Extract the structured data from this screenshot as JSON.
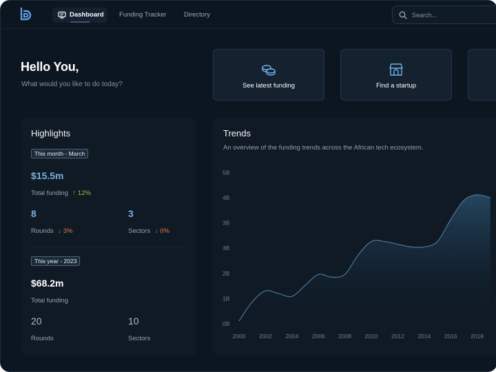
{
  "nav": {
    "tabs": [
      {
        "label": "Dashboard",
        "active": true
      },
      {
        "label": "Funding Tracker",
        "active": false
      },
      {
        "label": "Directory",
        "active": false
      }
    ],
    "search_placeholder": "Search..."
  },
  "greeting": {
    "title": "Hello You,",
    "subtitle": "What would you like to do today?"
  },
  "actions": [
    {
      "label": "See latest funding",
      "icon": "coins-icon"
    },
    {
      "label": "Find a startup",
      "icon": "storefront-icon"
    }
  ],
  "highlights": {
    "title": "Highlights",
    "month": {
      "badge": "This month - March",
      "total_value": "$15.5m",
      "total_label": "Total funding",
      "total_change": "12%",
      "rounds_value": "8",
      "rounds_label": "Rounds",
      "rounds_change": "3%",
      "sectors_value": "3",
      "sectors_label": "Sectors",
      "sectors_change": "0%"
    },
    "year": {
      "badge": "This year - 2023",
      "total_value": "$68.2m",
      "total_label": "Total funding",
      "rounds_value": "20",
      "rounds_label": "Rounds",
      "sectors_value": "10",
      "sectors_label": "Sectors"
    }
  },
  "trends": {
    "title": "Trends",
    "subtitle": "An overview of the funding trends across the African tech ecosystem."
  },
  "colors": {
    "accent_blue": "#79aee0",
    "up_green": "#8cc63f",
    "down_orange": "#e67a3a",
    "background": "#0c1621"
  },
  "chart_data": {
    "type": "area",
    "y_tick_labels": [
      "0B",
      "1B",
      "2B",
      "3B",
      "3B",
      "4B",
      "5B"
    ],
    "x_tick_labels": [
      "2000",
      "2002",
      "2004",
      "2006",
      "2008",
      "2010",
      "2012",
      "2014",
      "2016",
      "2018"
    ],
    "ylim": [
      0,
      6
    ],
    "x": [
      2000,
      2001,
      2002,
      2003,
      2004,
      2005,
      2006,
      2007,
      2008,
      2009,
      2010,
      2011,
      2012,
      2013,
      2014,
      2015,
      2016,
      2017,
      2018,
      2019
    ],
    "values": [
      0.1,
      0.8,
      1.2,
      1.1,
      1.0,
      1.4,
      1.8,
      1.7,
      1.8,
      2.5,
      3.0,
      3.0,
      2.9,
      2.8,
      2.8,
      3.0,
      3.8,
      4.5,
      4.7,
      4.6
    ]
  }
}
